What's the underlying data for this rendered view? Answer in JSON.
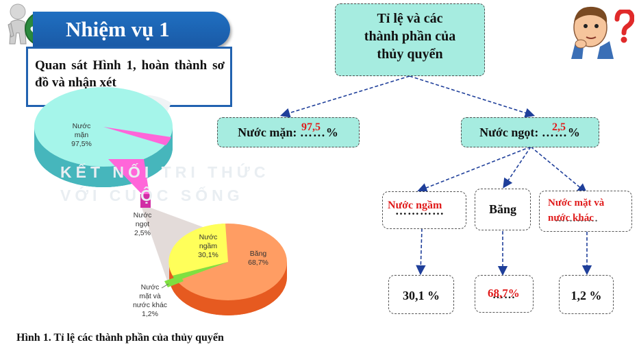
{
  "task": {
    "title": "Nhiệm vụ 1",
    "instruction": "Quan sát Hình 1, hoàn thành sơ đồ và nhận xét"
  },
  "diagram": {
    "root": [
      "Tỉ lệ và các",
      "thành phần của",
      "thủy quyển"
    ],
    "salt": {
      "label": "Nước mặn:",
      "blank": "……%",
      "answer": "97,5"
    },
    "fresh": {
      "label": "Nước ngọt:",
      "blank": "……%",
      "answer": "2,5"
    },
    "ground": {
      "blank": "…………",
      "answer": "Nước ngầm",
      "value": "30,1 %"
    },
    "ice": {
      "label": "Băng",
      "blank": "……",
      "answer": "68,7%"
    },
    "surface": {
      "answer_line1": "Nước mặt và",
      "answer_line2": "nước khác",
      "blank": "…………",
      "value": "1,2 %"
    }
  },
  "figure": {
    "caption": "Hình 1. Tỉ lệ các thành phần của thủy quyển",
    "big_pie": {
      "salt_label": [
        "Nước",
        "mặn",
        "97,5%"
      ],
      "fresh_label": [
        "Nước",
        "ngọt",
        "2,5%"
      ]
    },
    "small_pie": {
      "ground_label": [
        "Nước",
        "ngầm",
        "30,1%"
      ],
      "ice_label": [
        "Băng",
        "68,7%"
      ],
      "surface_label": [
        "Nước",
        "mặt và",
        "nước khác",
        "1,2%"
      ]
    },
    "watermark": [
      "KẾT NỐI TRI THỨC",
      "VỚI CUỘC SỐNG"
    ]
  },
  "colors": {
    "banner": "#1f6fc1",
    "node_fill": "#a6ece0",
    "answer_red": "#e01b1b",
    "salt_water": "#a5f5ea",
    "fresh_water": "#ff66d9",
    "ice": "#ff9d63",
    "groundwater": "#ffff5a",
    "surface_water": "#7fe040"
  },
  "icons": [
    "checkmark-person-icon",
    "thinking-person-icon",
    "question-mark-icon"
  ]
}
